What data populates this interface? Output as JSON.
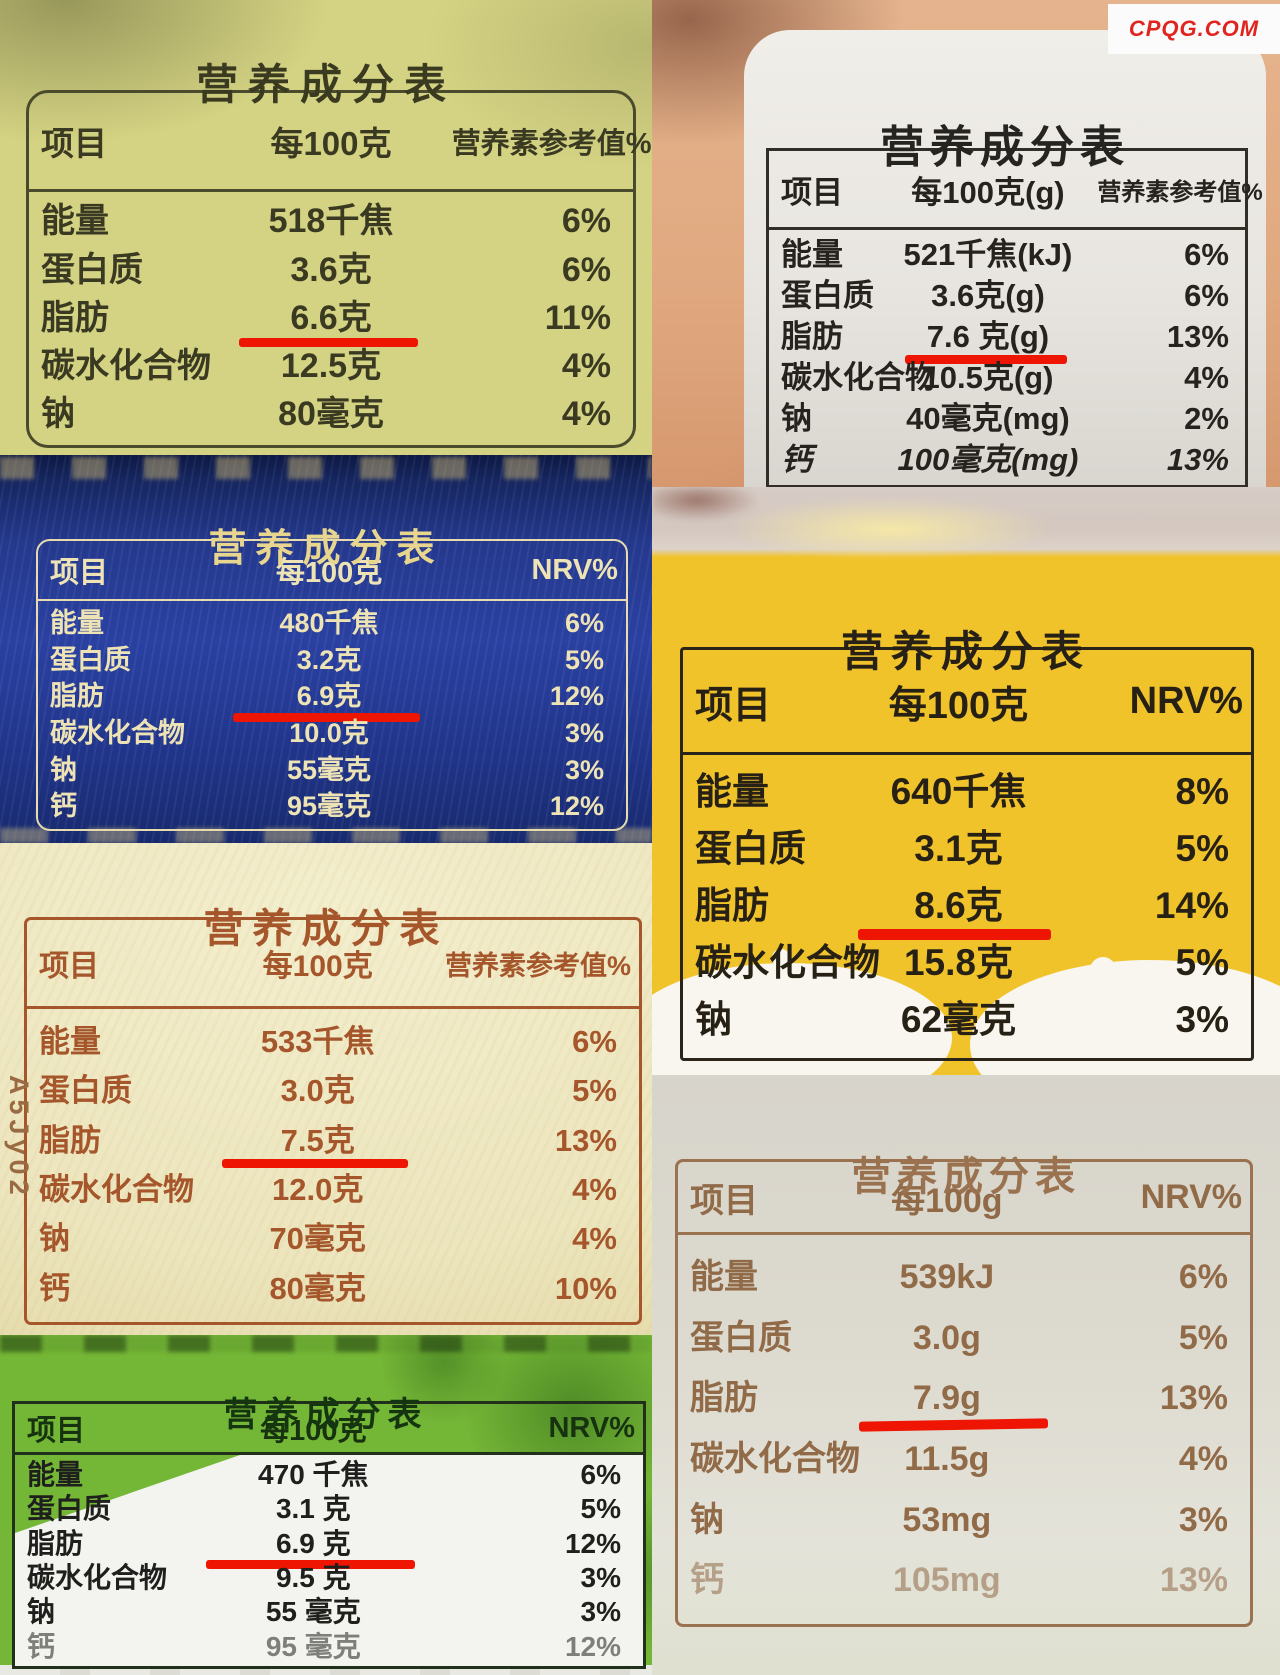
{
  "watermark": "CPQG.COM",
  "print_code": "A5Jy02",
  "annotation": {
    "red_underline_color": "#ee1502",
    "highlighted_nutrient": "脂肪"
  },
  "panels": [
    {
      "id": "p1",
      "title": "营养成分表",
      "columns": [
        "项目",
        "每100克",
        "营养素参考值%"
      ],
      "rows": [
        {
          "label": "能量",
          "value": "518千焦",
          "nrv": "6%"
        },
        {
          "label": "蛋白质",
          "value": "3.6克",
          "nrv": "6%"
        },
        {
          "label": "脂肪",
          "value": "6.6克",
          "nrv": "11%",
          "underline": true
        },
        {
          "label": "碳水化合物",
          "value": "12.5克",
          "nrv": "4%"
        },
        {
          "label": "钠",
          "value": "80毫克",
          "nrv": "4%"
        }
      ],
      "colors": {
        "bg": "#d4d383",
        "border": "#4a4a2c",
        "text": "#3a3a22"
      }
    },
    {
      "id": "p2",
      "title": "营养成分表",
      "columns": [
        "项目",
        "每100克(g)",
        "营养素参考值%"
      ],
      "rows": [
        {
          "label": "能量",
          "value": "521千焦(kJ)",
          "nrv": "6%"
        },
        {
          "label": "蛋白质",
          "value": "3.6克(g)",
          "nrv": "6%"
        },
        {
          "label": "脂肪",
          "value": "7.6 克(g)",
          "nrv": "13%",
          "underline": true
        },
        {
          "label": "碳水化合物",
          "value": "10.5克(g)",
          "nrv": "4%"
        },
        {
          "label": "钠",
          "value": "40毫克(mg)",
          "nrv": "2%"
        },
        {
          "label": "钙",
          "value": "100毫克(mg)",
          "nrv": "13%",
          "italic": true
        }
      ],
      "colors": {
        "bg": "#e0a87f",
        "label_bg": "#e8e5e0",
        "border": "#312e28",
        "text": "#26231e"
      }
    },
    {
      "id": "p3",
      "title": "营养成分表",
      "columns": [
        "项目",
        "每100克",
        "NRV%"
      ],
      "rows": [
        {
          "label": "能量",
          "value": "480千焦",
          "nrv": "6%"
        },
        {
          "label": "蛋白质",
          "value": "3.2克",
          "nrv": "5%"
        },
        {
          "label": "脂肪",
          "value": "6.9克",
          "nrv": "12%",
          "underline": true
        },
        {
          "label": "碳水化合物",
          "value": "10.0克",
          "nrv": "3%"
        },
        {
          "label": "钠",
          "value": "55毫克",
          "nrv": "3%"
        },
        {
          "label": "钙",
          "value": "95毫克",
          "nrv": "12%"
        }
      ],
      "colors": {
        "bg": "#2a41a2",
        "border": "#e7dcaf",
        "text": "#eee3b4"
      }
    },
    {
      "id": "p4",
      "title": "营养成分表",
      "columns": [
        "项目",
        "每100克",
        "NRV%"
      ],
      "rows": [
        {
          "label": "能量",
          "value": "640千焦",
          "nrv": "8%"
        },
        {
          "label": "蛋白质",
          "value": "3.1克",
          "nrv": "5%"
        },
        {
          "label": "脂肪",
          "value": "8.6克",
          "nrv": "14%",
          "underline": true
        },
        {
          "label": "碳水化合物",
          "value": "15.8克",
          "nrv": "5%"
        },
        {
          "label": "钠",
          "value": "62毫克",
          "nrv": "3%"
        }
      ],
      "colors": {
        "bg": "#f1c32b",
        "border": "#2a241b",
        "text": "#272115"
      }
    },
    {
      "id": "p5",
      "title": "营养成分表",
      "columns": [
        "项目",
        "每100克",
        "营养素参考值%"
      ],
      "rows": [
        {
          "label": "能量",
          "value": "533千焦",
          "nrv": "6%"
        },
        {
          "label": "蛋白质",
          "value": "3.0克",
          "nrv": "5%"
        },
        {
          "label": "脂肪",
          "value": "7.5克",
          "nrv": "13%",
          "underline": true
        },
        {
          "label": "碳水化合物",
          "value": "12.0克",
          "nrv": "4%"
        },
        {
          "label": "钠",
          "value": "70毫克",
          "nrv": "4%"
        },
        {
          "label": "钙",
          "value": "80毫克",
          "nrv": "10%"
        }
      ],
      "colors": {
        "bg": "#eee8c4",
        "border": "#a5562b",
        "text": "#a5562b"
      }
    },
    {
      "id": "p6",
      "title": "营养成分表",
      "columns": [
        "项目",
        "每100g",
        "NRV%"
      ],
      "rows": [
        {
          "label": "能量",
          "value": "539kJ",
          "nrv": "6%"
        },
        {
          "label": "蛋白质",
          "value": "3.0g",
          "nrv": "5%"
        },
        {
          "label": "脂肪",
          "value": "7.9g",
          "nrv": "13%",
          "underline": true
        },
        {
          "label": "碳水化合物",
          "value": "11.5g",
          "nrv": "4%"
        },
        {
          "label": "钠",
          "value": "53mg",
          "nrv": "3%"
        },
        {
          "label": "钙",
          "value": "105mg",
          "nrv": "13%",
          "muted": true
        }
      ],
      "colors": {
        "bg": "#dddacf",
        "border": "#9a7250",
        "text": "#916a48"
      }
    },
    {
      "id": "p7",
      "title": "营养成分表",
      "columns": [
        "项目",
        "每100克",
        "NRV%"
      ],
      "rows": [
        {
          "label": "能量",
          "value": "470 千焦",
          "nrv": "6%"
        },
        {
          "label": "蛋白质",
          "value": "3.1 克",
          "nrv": "5%"
        },
        {
          "label": "脂肪",
          "value": "6.9 克",
          "nrv": "12%",
          "underline": true
        },
        {
          "label": "碳水化合物",
          "value": "9.5 克",
          "nrv": "3%"
        },
        {
          "label": "钠",
          "value": "55 毫克",
          "nrv": "3%"
        },
        {
          "label": "钙",
          "value": "95 毫克",
          "nrv": "12%",
          "muted": true
        }
      ],
      "colors": {
        "bg": "#74b636",
        "border": "#20301a",
        "text": "#16320f",
        "body_bg": "#f3f3ef"
      }
    }
  ]
}
